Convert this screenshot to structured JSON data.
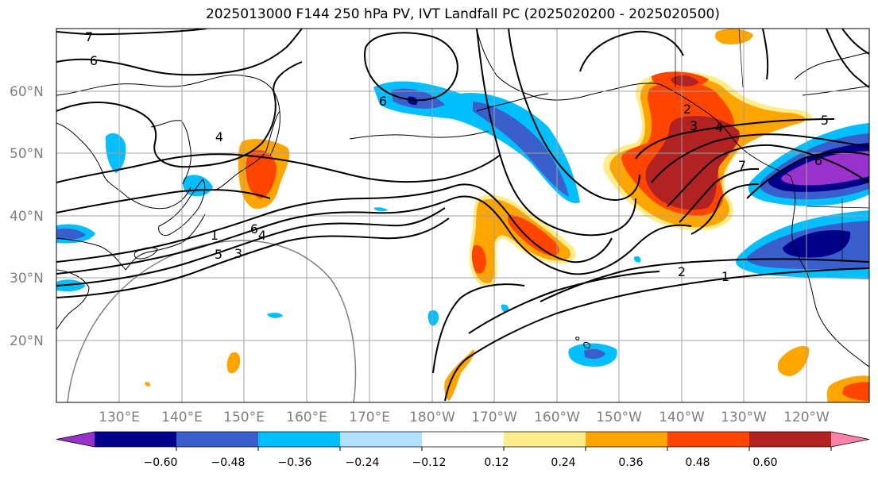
{
  "title": "2025013000 F144 250 hPa PV, IVT Landfall PC (2025020200 - 2025020500)",
  "lat_labels": [
    "60°N",
    "50°N",
    "40°N",
    "30°N",
    "20°N"
  ],
  "lon_labels": [
    "130°E",
    "140°E",
    "150°E",
    "160°E",
    "170°E",
    "180°W",
    "170°W",
    "160°W",
    "150°W",
    "140°W",
    "130°W",
    "120°W"
  ],
  "colorbar": {
    "ticks": [
      "−0.60",
      "−0.48",
      "−0.36",
      "−0.24",
      "−0.12",
      "0.12",
      "0.24",
      "0.36",
      "0.48",
      "0.60"
    ],
    "colors": [
      "#9932cc",
      "#00008b",
      "#3a5fcd",
      "#00bfff",
      "#b0e2ff",
      "#ffffff",
      "#ffec8b",
      "#ffa500",
      "#ff4500",
      "#b22222",
      "#ff82ab"
    ]
  },
  "contour_labels": [
    "7",
    "6",
    "6",
    "4",
    "1",
    "5",
    "6",
    "3",
    "4",
    "2",
    "3",
    "4",
    "5",
    "7",
    "6",
    "2",
    "1"
  ]
}
